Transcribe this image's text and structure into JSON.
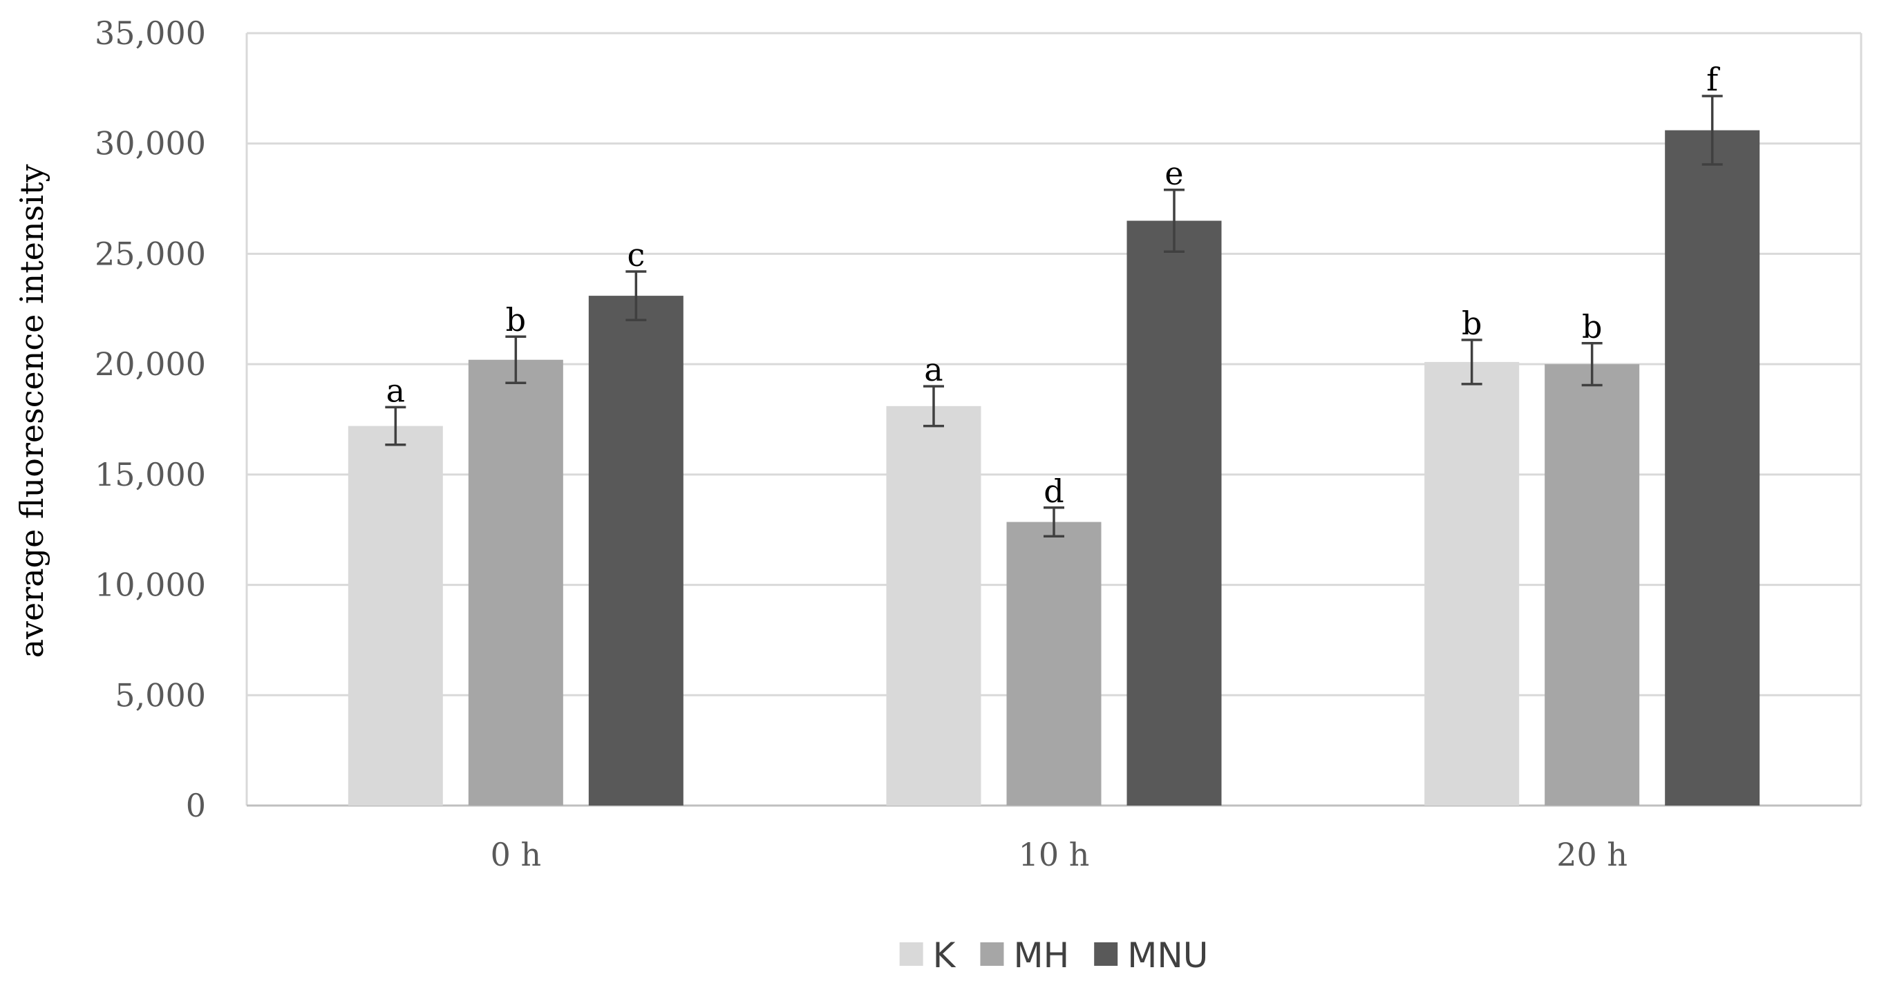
{
  "chart_data": {
    "type": "bar",
    "ylabel": "average fluorescence intensity",
    "xlabel": "",
    "ylim": [
      0,
      35000
    ],
    "yticks": [
      0,
      5000,
      10000,
      15000,
      20000,
      25000,
      30000,
      35000
    ],
    "ytick_labels": [
      "0",
      "5,000",
      "10,000",
      "15,000",
      "20,000",
      "25,000",
      "30,000",
      "35,000"
    ],
    "grid": "horizontal",
    "legend_position": "bottom",
    "categories": [
      "0 h",
      "10 h",
      "20 h"
    ],
    "series": [
      {
        "name": "K",
        "color": "#d9d9d9",
        "values": [
          17200,
          18100,
          20100
        ],
        "errors": [
          850,
          900,
          1000
        ],
        "labels": [
          "a",
          "a",
          "b"
        ]
      },
      {
        "name": "MH",
        "color": "#a6a6a6",
        "values": [
          20200,
          12850,
          20000
        ],
        "errors": [
          1050,
          650,
          950
        ],
        "labels": [
          "b",
          "d",
          "b"
        ]
      },
      {
        "name": "MNU",
        "color": "#595959",
        "values": [
          23100,
          26500,
          30600
        ],
        "errors": [
          1100,
          1400,
          1550
        ],
        "labels": [
          "c",
          "e",
          "f"
        ]
      }
    ]
  }
}
